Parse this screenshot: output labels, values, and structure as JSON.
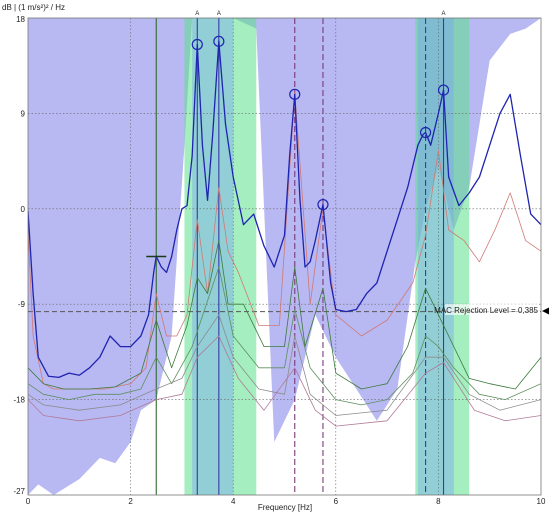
{
  "chart_data": {
    "type": "line",
    "ylabel": "dB | (1 m/s²)² / Hz",
    "xlabel": "Frequency [Hz]",
    "xlim": [
      0,
      10
    ],
    "ylim": [
      -27,
      18
    ],
    "x_ticks": [
      "0",
      "2",
      "4",
      "6",
      "8",
      "10"
    ],
    "y_ticks": [
      "-27",
      "-18",
      "-9",
      "0",
      "9",
      "18"
    ],
    "mac_rejection": {
      "label": "MAC Rejection Level = 0,385",
      "level_db": -9.7
    },
    "mode_markers": [
      {
        "label": "A",
        "x": 3.3
      },
      {
        "label": "A",
        "x": 3.72
      },
      {
        "label": "A",
        "x": 8.1
      }
    ],
    "peaks": [
      {
        "x": 3.3,
        "y": 15.5
      },
      {
        "x": 3.72,
        "y": 15.8
      },
      {
        "x": 5.2,
        "y": 10.8
      },
      {
        "x": 5.75,
        "y": 0.4
      },
      {
        "x": 7.75,
        "y": 7.2
      },
      {
        "x": 8.1,
        "y": 11.2
      }
    ],
    "tick_marker": {
      "x": 2.5,
      "y": -4.5
    },
    "green_bands": [
      [
        3.05,
        4.45
      ],
      [
        7.55,
        8.6
      ]
    ],
    "blue_bands": [
      [
        3.2,
        4.0
      ],
      [
        7.6,
        8.3
      ]
    ],
    "vertical_lines": [
      {
        "x": 2.5,
        "color": "#2e6b2e",
        "dash": false
      },
      {
        "x": 3.3,
        "color": "#3a3aa8",
        "dash": false
      },
      {
        "x": 3.72,
        "color": "#3a3aa8",
        "dash": false
      },
      {
        "x": 5.2,
        "color": "#7a3a7a",
        "dash": true
      },
      {
        "x": 5.75,
        "color": "#7a3a7a",
        "dash": true
      },
      {
        "x": 7.75,
        "color": "#3a3aa8",
        "dash": true
      },
      {
        "x": 8.1,
        "color": "#3a3aa8",
        "dash": false
      }
    ],
    "series": [
      {
        "role": "sum",
        "color": "#1e24b0",
        "x": [
          0,
          0.1,
          0.2,
          0.4,
          0.6,
          0.8,
          1.0,
          1.2,
          1.4,
          1.6,
          1.8,
          2.0,
          2.2,
          2.35,
          2.45,
          2.5,
          2.6,
          2.7,
          2.8,
          2.9,
          3.0,
          3.1,
          3.2,
          3.3,
          3.4,
          3.5,
          3.6,
          3.72,
          3.85,
          4.0,
          4.2,
          4.4,
          4.6,
          4.8,
          5.0,
          5.1,
          5.2,
          5.3,
          5.4,
          5.5,
          5.6,
          5.75,
          5.9,
          6.0,
          6.2,
          6.4,
          6.6,
          6.8,
          7.0,
          7.2,
          7.4,
          7.6,
          7.7,
          7.75,
          7.85,
          8.0,
          8.1,
          8.2,
          8.4,
          8.6,
          8.8,
          9.0,
          9.2,
          9.4,
          9.6,
          9.8,
          10.0
        ],
        "y": [
          -0.2,
          -8,
          -14,
          -15.8,
          -15.9,
          -15.5,
          -15.7,
          -15,
          -14,
          -12,
          -13,
          -13,
          -12,
          -10,
          -6,
          -4.5,
          -5.5,
          -6,
          -4.5,
          -2,
          0,
          0.3,
          5,
          15.5,
          6,
          0.8,
          7,
          15.8,
          8,
          3,
          -1.5,
          -0.5,
          -3.5,
          -5.5,
          -2.5,
          5,
          10.8,
          1,
          -5.5,
          -5,
          -3,
          0.4,
          -7,
          -9.5,
          -9.7,
          -9.5,
          -8,
          -7,
          -4,
          -1,
          2,
          6,
          7,
          7.2,
          6,
          9,
          11.2,
          3,
          0.3,
          1.5,
          3,
          6,
          9,
          10.8,
          5,
          -0.5,
          -1.5
        ]
      },
      {
        "role": "mode",
        "color": "#d07a74",
        "x": [
          0,
          0.1,
          0.3,
          0.5,
          1.0,
          1.5,
          2.0,
          2.3,
          2.5,
          2.7,
          2.9,
          3.1,
          3.3,
          3.5,
          3.72,
          3.9,
          4.1,
          4.5,
          4.9,
          5.2,
          5.5,
          5.75,
          6.0,
          6.5,
          7.0,
          7.5,
          7.75,
          8.0,
          8.2,
          8.5,
          8.8,
          9.1,
          9.4,
          9.7,
          10.0
        ],
        "y": [
          -2,
          -12,
          -16.5,
          -17,
          -17,
          -17,
          -16.5,
          -15,
          -8,
          -12,
          -12,
          -10,
          -1,
          -8,
          2,
          -4,
          -6,
          -11,
          -11,
          11,
          -9,
          0,
          -10,
          -12,
          -10.5,
          -7,
          -2.5,
          5.5,
          -2,
          -3,
          -5,
          -2,
          1.5,
          -3,
          -4
        ]
      },
      {
        "role": "mode",
        "color": "#3d7a3d",
        "x": [
          0,
          0.3,
          0.7,
          1.2,
          1.7,
          2.2,
          2.5,
          2.8,
          3.1,
          3.3,
          3.5,
          3.72,
          3.9,
          4.2,
          4.6,
          5.0,
          5.2,
          5.4,
          5.75,
          6.0,
          6.5,
          7.0,
          7.4,
          7.75,
          8.0,
          8.2,
          8.6,
          9.0,
          9.5,
          10.0
        ],
        "y": [
          -15,
          -16.5,
          -17,
          -17,
          -16.8,
          -15.5,
          -10.5,
          -15,
          -11,
          -6.5,
          -8,
          -3,
          -9,
          -9,
          -13,
          -13,
          -5.5,
          -13,
          -7.5,
          -15.5,
          -17,
          -16.5,
          -13,
          -7.5,
          -10,
          -12,
          -16,
          -16.5,
          -17,
          -14
        ]
      },
      {
        "role": "mode",
        "color": "#5e8f5e",
        "x": [
          0,
          0.3,
          0.8,
          1.3,
          1.8,
          2.2,
          2.5,
          2.8,
          3.2,
          3.72,
          4.0,
          4.5,
          5.0,
          5.2,
          5.5,
          6.0,
          6.5,
          7.0,
          7.5,
          7.75,
          8.0,
          8.3,
          8.8,
          9.3,
          10.0
        ],
        "y": [
          -16.5,
          -17.5,
          -18,
          -17.5,
          -17.5,
          -17,
          -14,
          -16.5,
          -13,
          -5.5,
          -12,
          -15,
          -15,
          -9.5,
          -15,
          -18,
          -18.5,
          -18,
          -15.5,
          -12,
          -13,
          -15,
          -17.5,
          -18,
          -16.5
        ]
      },
      {
        "role": "mode",
        "color": "#8c8c8c",
        "x": [
          0,
          0.3,
          1.0,
          1.8,
          2.5,
          3.0,
          3.3,
          3.72,
          4.0,
          4.5,
          5.0,
          5.2,
          5.5,
          6.0,
          7.0,
          7.75,
          8.1,
          8.6,
          9.2,
          10.0
        ],
        "y": [
          -17.5,
          -18.5,
          -19,
          -18.5,
          -17,
          -16,
          -13,
          -10,
          -14,
          -17,
          -17.5,
          -12,
          -17.5,
          -19.5,
          -19,
          -14,
          -14,
          -17.5,
          -19,
          -18
        ]
      },
      {
        "role": "mode",
        "color": "#b07a98",
        "x": [
          0,
          0.3,
          1.0,
          1.8,
          2.5,
          3.0,
          3.3,
          3.72,
          4.1,
          4.6,
          5.2,
          5.6,
          6.0,
          7.0,
          7.75,
          8.1,
          8.7,
          9.3,
          10.0
        ],
        "y": [
          -18,
          -19.5,
          -20,
          -19.5,
          -18,
          -17.5,
          -14,
          -12,
          -16,
          -19,
          -15,
          -19,
          -20.5,
          -20,
          -15.5,
          -14.5,
          -19,
          -20,
          -19.5
        ]
      }
    ],
    "lavender_fill": {
      "x": [
        0,
        0.2,
        0.5,
        1.0,
        1.4,
        1.7,
        2.0,
        2.2,
        2.5,
        2.8,
        3.05,
        3.2,
        3.6,
        4.0,
        4.45,
        4.8,
        5.2,
        5.6,
        6.0,
        6.4,
        6.8,
        7.2,
        7.55,
        7.75,
        8.0,
        8.3,
        8.6,
        9.0,
        9.4,
        9.7,
        10.0
      ],
      "y": [
        -27,
        -26,
        -27,
        -25.5,
        -23.5,
        -24,
        -22,
        -19,
        -18,
        -12,
        6,
        18,
        18,
        18,
        17,
        -22,
        -18,
        -10,
        -14,
        -17,
        -20,
        -17,
        -5,
        0,
        4,
        -2,
        2,
        14,
        16.5,
        17,
        18
      ]
    }
  }
}
